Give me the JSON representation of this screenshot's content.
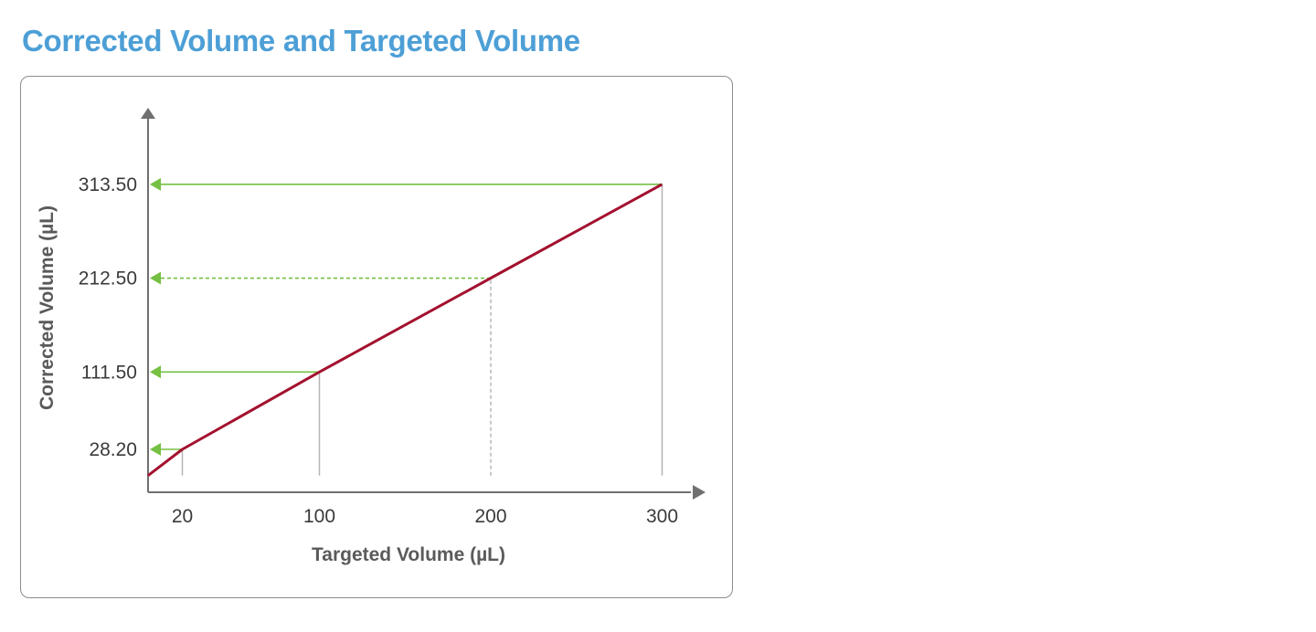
{
  "page": {
    "title": "Corrected Volume and Targeted Volume"
  },
  "colors": {
    "title": "#4d9fd6",
    "line": "#a3112e",
    "arrow": "#76c043",
    "axis": "#707070",
    "guide": "#b5b5b5",
    "text": "#3a3a3a"
  },
  "chart_data": {
    "type": "line",
    "title": "Corrected Volume and Targeted Volume",
    "xlabel": "Targeted Volume (µL)",
    "ylabel": "Corrected Volume (µL)",
    "x_ticks": [
      20,
      100,
      200,
      300
    ],
    "x_tick_labels": [
      "20",
      "100",
      "200",
      "300"
    ],
    "y_ticks": [
      28.2,
      111.5,
      212.5,
      313.5
    ],
    "y_tick_labels": [
      "28.20",
      "111.50",
      "212.50",
      "313.50"
    ],
    "xlim": [
      0,
      320
    ],
    "ylim": [
      -18,
      390
    ],
    "grid": false,
    "legend": "none",
    "series": [
      {
        "x": [
          0,
          20,
          100,
          200,
          300
        ],
        "y": [
          0,
          28.2,
          111.5,
          212.5,
          313.5
        ]
      }
    ],
    "annotations": [
      {
        "x": 20,
        "y": 28.2,
        "style": "solid"
      },
      {
        "x": 100,
        "y": 111.5,
        "style": "solid"
      },
      {
        "x": 200,
        "y": 212.5,
        "style": "dashed"
      },
      {
        "x": 300,
        "y": 313.5,
        "style": "solid"
      }
    ]
  }
}
